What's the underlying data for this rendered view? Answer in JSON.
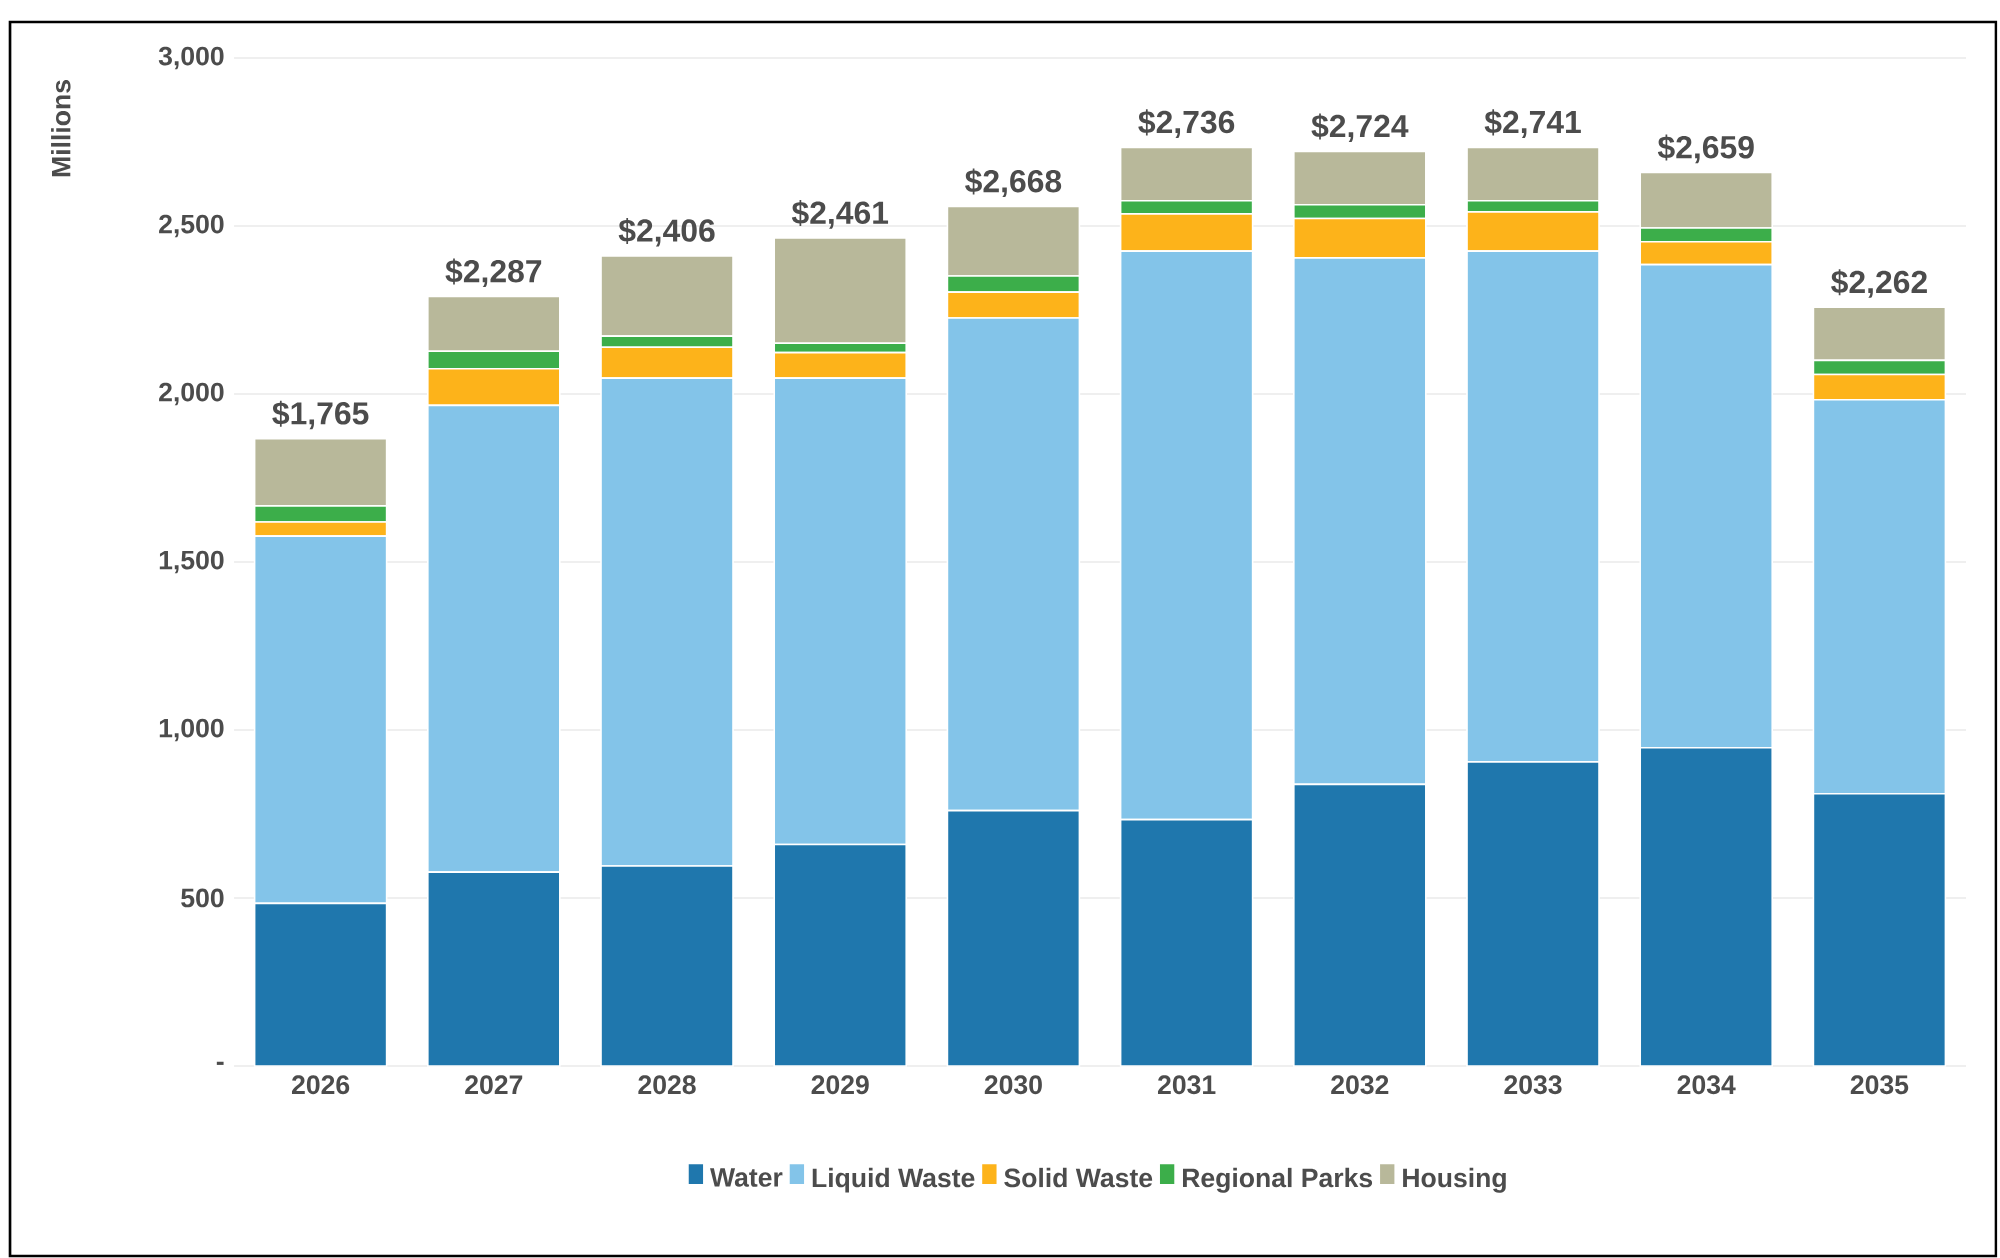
{
  "chart_data": {
    "type": "bar",
    "stacked": true,
    "ylabel": "Millions",
    "categories": [
      "2026",
      "2027",
      "2028",
      "2029",
      "2030",
      "2031",
      "2032",
      "2033",
      "2034",
      "2035"
    ],
    "series": [
      {
        "name": "Water",
        "color": "#1f77ad",
        "values": [
          484,
          577,
          595,
          659,
          760,
          733,
          838,
          905,
          947,
          810
        ]
      },
      {
        "name": "Liquid Waste",
        "color": "#83c4e9",
        "values": [
          1093,
          1389,
          1452,
          1388,
          1466,
          1692,
          1567,
          1520,
          1438,
          1173
        ]
      },
      {
        "name": "Solid Waste",
        "color": "#fdb31a",
        "values": [
          42,
          109,
          92,
          76,
          77,
          111,
          117,
          117,
          68,
          75
        ]
      },
      {
        "name": "Regional Parks",
        "color": "#3cae4a",
        "values": [
          48,
          52,
          33,
          28,
          48,
          39,
          41,
          33,
          41,
          42
        ]
      },
      {
        "name": "Housing",
        "color": "#b8b89a",
        "values": [
          200,
          163,
          239,
          313,
          207,
          159,
          159,
          159,
          165,
          158
        ]
      }
    ],
    "annotations": [
      {
        "text": "$1,765",
        "x": "2026",
        "y": 1867
      },
      {
        "text": "$2,287",
        "x": "2027",
        "y": 2290
      },
      {
        "text": "$2,406",
        "x": "2028",
        "y": 2411
      },
      {
        "text": "$2,461",
        "x": "2029",
        "y": 2464
      },
      {
        "text": "$2,668",
        "x": "2030",
        "y": 2558
      },
      {
        "text": "$2,736",
        "x": "2031",
        "y": 2734
      },
      {
        "text": "$2,724",
        "x": "2032",
        "y": 2722
      },
      {
        "text": "$2,741",
        "x": "2033",
        "y": 2734
      },
      {
        "text": "$2,659",
        "x": "2034",
        "y": 2659
      },
      {
        "text": "$2,262",
        "x": "2035",
        "y": 2258
      }
    ],
    "ylim": [
      0,
      3000
    ],
    "yticks": [
      {
        "value": 0,
        "label": "-"
      },
      500,
      {
        "value": 1000,
        "label": "1,000"
      },
      {
        "value": 1500,
        "label": "1,500"
      },
      {
        "value": 2000,
        "label": "2,000"
      },
      {
        "value": 2500,
        "label": "2,500"
      },
      {
        "value": 3000,
        "label": "3,000"
      }
    ],
    "grid": "y",
    "legend": "bottom"
  }
}
